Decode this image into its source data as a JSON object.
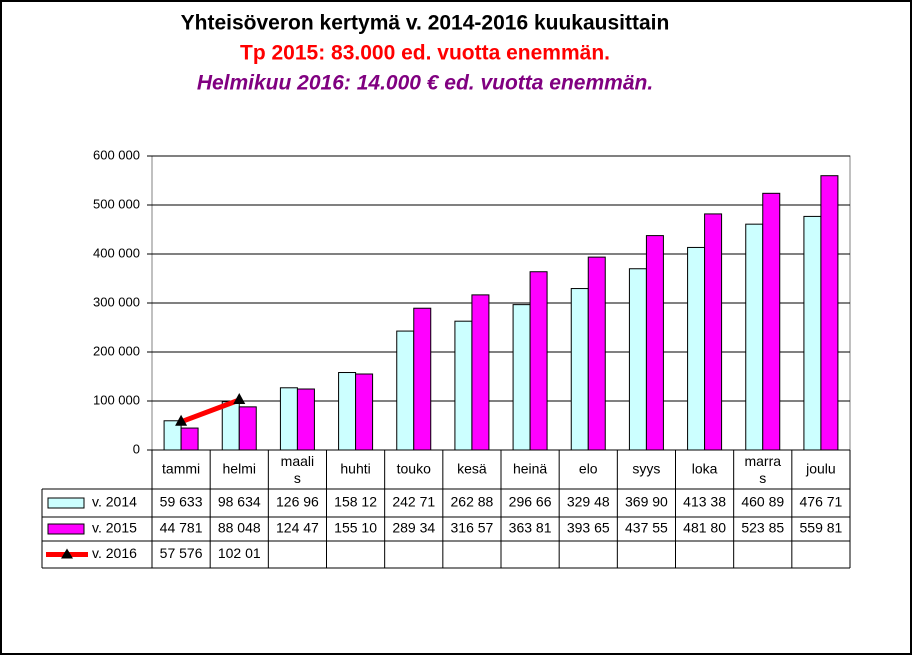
{
  "chart_data": {
    "type": "bar",
    "title": "Yhteisöveron kertymä  v. 2014-2016 kuukausittain",
    "subtitle": "Tp 2015: 83.000 ed. vuotta enemmän.",
    "annotation": "Helmikuu  2016: 14.000 € ed. vuotta  enemmän.",
    "categories": [
      "tammi",
      "helmi",
      "maalis",
      "huhti",
      "touko",
      "kesä",
      "heinä",
      "elo",
      "syys",
      "loka",
      "marras",
      "joulu"
    ],
    "series": [
      {
        "name": "v. 2014",
        "type": "bar",
        "color": "#ccffff",
        "values": [
          59633,
          98634,
          126960,
          158120,
          242710,
          262880,
          296660,
          329480,
          369900,
          413380,
          460890,
          476710
        ],
        "value_labels": [
          "59 633",
          "98 634",
          "126 96",
          "158 12",
          "242 71",
          "262 88",
          "296 66",
          "329 48",
          "369 90",
          "413 38",
          "460 89",
          "476 71"
        ]
      },
      {
        "name": "v. 2015",
        "type": "bar",
        "color": "#ff00ff",
        "values": [
          44781,
          88048,
          124470,
          155100,
          289340,
          316570,
          363810,
          393650,
          437550,
          481800,
          523850,
          559810
        ],
        "value_labels": [
          "44 781",
          "88 048",
          "124 47",
          "155 10",
          "289 34",
          "316 57",
          "363 81",
          "393 65",
          "437 55",
          "481 80",
          "523 85",
          "559 81"
        ]
      },
      {
        "name": "v. 2016",
        "type": "line",
        "color": "#ff0000",
        "values": [
          57576,
          102010,
          null,
          null,
          null,
          null,
          null,
          null,
          null,
          null,
          null,
          null
        ],
        "value_labels": [
          "57 576",
          "102 01",
          null,
          null,
          null,
          null,
          null,
          null,
          null,
          null,
          null,
          null
        ]
      }
    ],
    "ylim": [
      0,
      600000
    ],
    "yticks": [
      0,
      {
        "value": 100000,
        "label": "100 000"
      },
      {
        "value": 200000,
        "label": "200 000"
      },
      {
        "value": 300000,
        "label": "300 000"
      },
      {
        "value": 400000,
        "label": "400 000"
      },
      {
        "value": 500000,
        "label": "500 000"
      },
      {
        "value": 600000,
        "label": "600 000"
      }
    ],
    "grid": true
  }
}
